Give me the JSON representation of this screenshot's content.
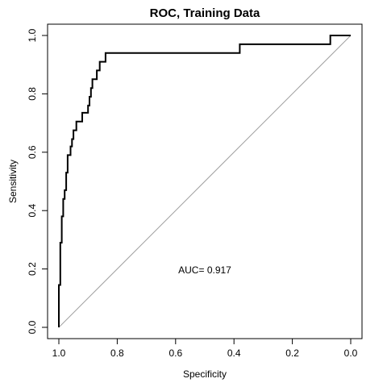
{
  "chart_data": {
    "type": "line",
    "title": "ROC, Training Data",
    "xlabel": "Specificity",
    "ylabel": "Sensitivity",
    "xlim": [
      1.0,
      0.0
    ],
    "ylim": [
      0.0,
      1.0
    ],
    "x_reversed": true,
    "x_ticks": [
      1.0,
      0.8,
      0.6,
      0.4,
      0.2,
      0.0
    ],
    "x_tick_labels": [
      "1.0",
      "0.8",
      "0.6",
      "0.4",
      "0.2",
      "0.0"
    ],
    "y_ticks": [
      0.0,
      0.2,
      0.4,
      0.6,
      0.8,
      1.0
    ],
    "y_tick_labels": [
      "0.0",
      "0.2",
      "0.4",
      "0.6",
      "0.8",
      "1.0"
    ],
    "grid": false,
    "legend": "none",
    "annotation": "AUC= 0.917",
    "reference_line": {
      "from": [
        1.0,
        0.0
      ],
      "to": [
        0.0,
        1.0
      ],
      "color": "#a0a0a0"
    },
    "series": [
      {
        "color": "#000000",
        "x": [
          1.0,
          1.0,
          0.995,
          0.995,
          0.99,
          0.99,
          0.985,
          0.985,
          0.98,
          0.98,
          0.975,
          0.975,
          0.97,
          0.97,
          0.96,
          0.96,
          0.955,
          0.955,
          0.95,
          0.95,
          0.94,
          0.94,
          0.93,
          0.93,
          0.92,
          0.92,
          0.91,
          0.91,
          0.9,
          0.9,
          0.895,
          0.895,
          0.89,
          0.89,
          0.885,
          0.885,
          0.87,
          0.87,
          0.86,
          0.86,
          0.85,
          0.85,
          0.84,
          0.84,
          0.82,
          0.82,
          0.38,
          0.38,
          0.07,
          0.07,
          0.0
        ],
        "y": [
          0.0,
          0.145,
          0.145,
          0.29,
          0.29,
          0.38,
          0.38,
          0.44,
          0.44,
          0.47,
          0.47,
          0.53,
          0.53,
          0.59,
          0.59,
          0.62,
          0.62,
          0.645,
          0.645,
          0.675,
          0.675,
          0.705,
          0.705,
          0.705,
          0.705,
          0.735,
          0.735,
          0.735,
          0.735,
          0.76,
          0.76,
          0.79,
          0.79,
          0.82,
          0.82,
          0.85,
          0.85,
          0.88,
          0.88,
          0.91,
          0.91,
          0.91,
          0.91,
          0.94,
          0.94,
          0.94,
          0.94,
          0.97,
          0.97,
          1.0,
          1.0
        ]
      }
    ]
  }
}
